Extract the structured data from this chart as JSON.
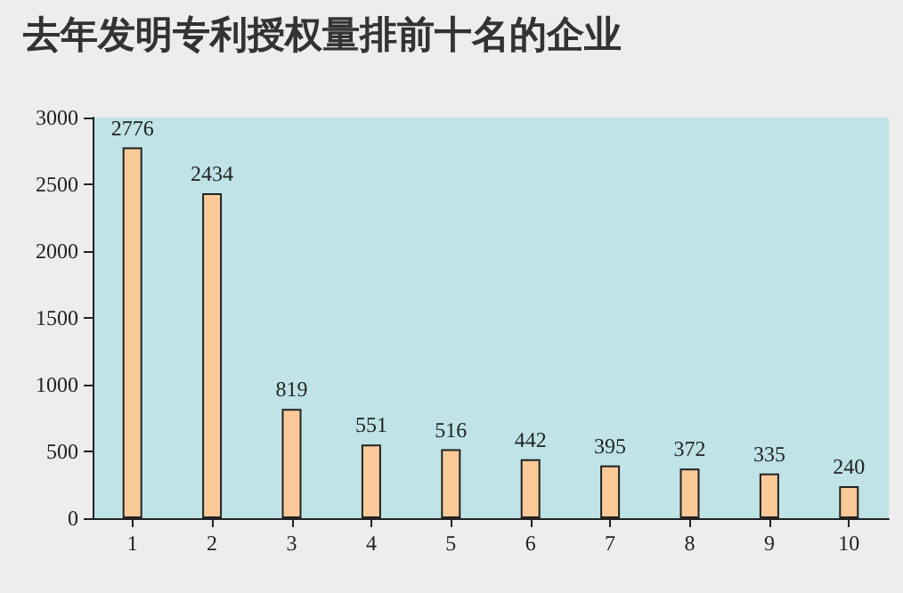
{
  "chart_data": {
    "type": "bar",
    "title": "去年发明专利授权量排前十名的企业",
    "categories": [
      "1",
      "2",
      "3",
      "4",
      "5",
      "6",
      "7",
      "8",
      "9",
      "10"
    ],
    "values": [
      2776,
      2434,
      819,
      551,
      516,
      442,
      395,
      372,
      335,
      240
    ],
    "color": "#f9c998",
    "ylim": [
      0,
      3000
    ],
    "yticks": [
      0,
      500,
      1000,
      1500,
      2000,
      2500,
      3000
    ],
    "grid": false,
    "data_labels": true
  }
}
